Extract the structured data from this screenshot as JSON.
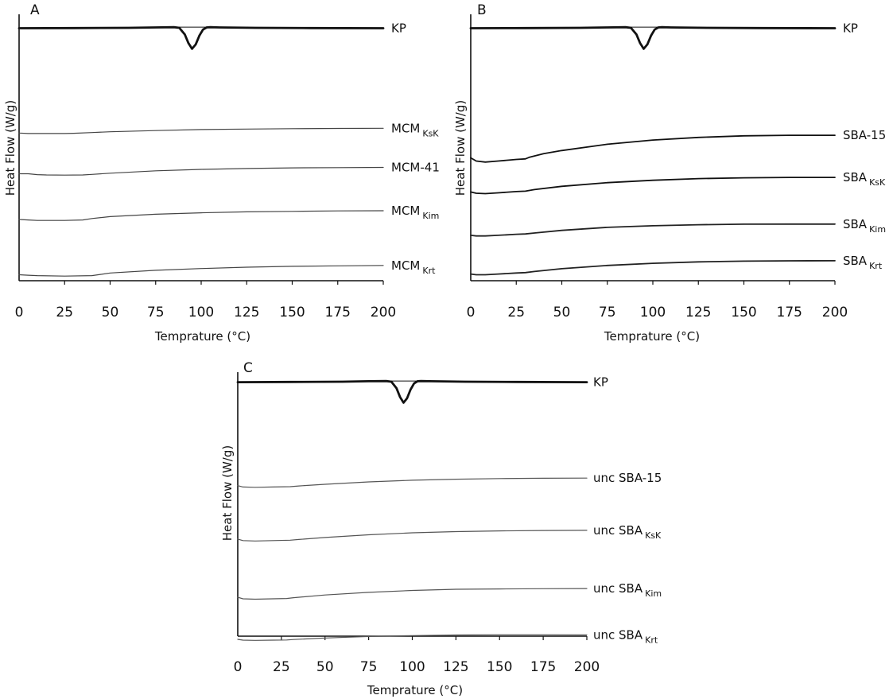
{
  "chart_data": [
    {
      "type": "line",
      "panel": "A",
      "xlabel": "Temprature (°C)",
      "ylabel": "Heat Flow (W/g)",
      "xlim": [
        0,
        200
      ],
      "xticks": [
        "0",
        "25",
        "50",
        "75",
        "100",
        "125",
        "150",
        "175",
        "200"
      ],
      "series": [
        {
          "name": "KP",
          "name_sub": "",
          "kind": "peak",
          "color": "#111111",
          "x": [
            0,
            30,
            60,
            75,
            85,
            88,
            91,
            93,
            95,
            97,
            99,
            101,
            103,
            105,
            110,
            130,
            160,
            200
          ],
          "y": [
            0.99,
            0.995,
            1.0,
            1.01,
            1.015,
            1.0,
            0.85,
            0.65,
            0.52,
            0.62,
            0.82,
            0.96,
            1.01,
            1.015,
            1.01,
            1.0,
            0.995,
            0.99
          ]
        },
        {
          "name": "MCM-41",
          "name_sub": "",
          "kind": "baseline",
          "color": "#444444",
          "x": [
            0,
            5,
            10,
            15,
            25,
            35,
            40,
            50,
            75,
            100,
            125,
            150,
            175,
            200
          ],
          "y": [
            0.52,
            0.52,
            0.505,
            0.5,
            0.497,
            0.5,
            0.51,
            0.53,
            0.57,
            0.595,
            0.61,
            0.62,
            0.625,
            0.628
          ]
        },
        {
          "name": "MCM",
          "name_sub": "KsK",
          "kind": "baseline",
          "color": "#444444",
          "x": [
            0,
            5,
            10,
            25,
            30,
            40,
            50,
            75,
            100,
            125,
            150,
            175,
            200
          ],
          "y": [
            0.36,
            0.35,
            0.35,
            0.35,
            0.355,
            0.37,
            0.385,
            0.41,
            0.43,
            0.44,
            0.447,
            0.452,
            0.455
          ]
        },
        {
          "name": "MCM",
          "name_sub": "Kim",
          "kind": "baseline",
          "color": "#444444",
          "x": [
            0,
            5,
            10,
            25,
            35,
            40,
            50,
            75,
            100,
            125,
            150,
            175,
            200
          ],
          "y": [
            0.2,
            0.195,
            0.19,
            0.19,
            0.195,
            0.21,
            0.23,
            0.255,
            0.27,
            0.28,
            0.285,
            0.29,
            0.292
          ]
        },
        {
          "name": "MCM",
          "name_sub": "Krt",
          "kind": "baseline",
          "color": "#444444",
          "x": [
            0,
            5,
            10,
            25,
            40,
            45,
            50,
            75,
            100,
            125,
            150,
            175,
            200
          ],
          "y": [
            0.04,
            0.035,
            0.03,
            0.025,
            0.03,
            0.045,
            0.06,
            0.09,
            0.11,
            0.125,
            0.135,
            0.14,
            0.145
          ]
        }
      ]
    },
    {
      "type": "line",
      "panel": "B",
      "xlabel": "Temprature (°C)",
      "ylabel": "Heat Flow (W/g)",
      "xlim": [
        0,
        200
      ],
      "xticks": [
        "0",
        "25",
        "50",
        "75",
        "100",
        "125",
        "150",
        "175",
        "200"
      ],
      "series": [
        {
          "name": "KP",
          "name_sub": "",
          "kind": "peak",
          "color": "#111111",
          "x": [
            0,
            30,
            60,
            75,
            85,
            88,
            91,
            93,
            95,
            97,
            99,
            101,
            103,
            105,
            110,
            130,
            160,
            200
          ],
          "y": [
            0.99,
            0.995,
            1.0,
            1.01,
            1.015,
            1.0,
            0.85,
            0.65,
            0.52,
            0.62,
            0.82,
            0.96,
            1.01,
            1.015,
            1.01,
            1.0,
            0.995,
            0.99
          ]
        },
        {
          "name": "SBA-15",
          "name_sub": "",
          "kind": "baseline",
          "color": "#111111",
          "x": [
            0,
            3,
            8,
            15,
            25,
            30,
            32,
            40,
            50,
            75,
            100,
            125,
            150,
            175,
            200
          ],
          "y": [
            0.39,
            0.36,
            0.35,
            0.36,
            0.375,
            0.38,
            0.395,
            0.43,
            0.46,
            0.52,
            0.56,
            0.585,
            0.6,
            0.605,
            0.605
          ]
        },
        {
          "name": "SBA",
          "name_sub": "KsK",
          "kind": "baseline",
          "color": "#111111",
          "x": [
            0,
            3,
            8,
            15,
            25,
            30,
            35,
            50,
            75,
            100,
            125,
            150,
            175,
            200
          ],
          "y": [
            0.28,
            0.265,
            0.26,
            0.27,
            0.285,
            0.29,
            0.31,
            0.35,
            0.395,
            0.425,
            0.445,
            0.455,
            0.46,
            0.46
          ]
        },
        {
          "name": "SBA",
          "name_sub": "Kim",
          "kind": "baseline",
          "color": "#222222",
          "x": [
            0,
            3,
            8,
            15,
            25,
            30,
            35,
            50,
            75,
            100,
            125,
            150,
            175,
            200
          ],
          "y": [
            0.17,
            0.16,
            0.16,
            0.17,
            0.185,
            0.19,
            0.205,
            0.245,
            0.29,
            0.315,
            0.33,
            0.338,
            0.34,
            0.34
          ]
        },
        {
          "name": "SBA",
          "name_sub": "Krt",
          "kind": "baseline",
          "color": "#222222",
          "x": [
            0,
            3,
            8,
            15,
            25,
            30,
            35,
            50,
            75,
            100,
            125,
            150,
            175,
            200
          ],
          "y": [
            0.06,
            0.05,
            0.05,
            0.06,
            0.075,
            0.08,
            0.095,
            0.135,
            0.18,
            0.21,
            0.23,
            0.24,
            0.244,
            0.245
          ]
        }
      ]
    },
    {
      "type": "line",
      "panel": "C",
      "xlabel": "Temprature (°C)",
      "ylabel": "Heat Flow (W/g)",
      "xlim": [
        0,
        200
      ],
      "xticks": [
        "0",
        "25",
        "50",
        "75",
        "100",
        "125",
        "150",
        "175",
        "200"
      ],
      "series": [
        {
          "name": "KP",
          "name_sub": "",
          "kind": "peak",
          "color": "#111111",
          "x": [
            0,
            30,
            60,
            75,
            85,
            88,
            91,
            93,
            95,
            97,
            99,
            101,
            103,
            105,
            110,
            130,
            160,
            200
          ],
          "y": [
            0.99,
            0.995,
            1.0,
            1.01,
            1.015,
            1.0,
            0.85,
            0.65,
            0.52,
            0.62,
            0.82,
            0.96,
            1.01,
            1.015,
            1.01,
            1.0,
            0.995,
            0.99
          ]
        },
        {
          "name": "unc SBA-15",
          "name_sub": "",
          "kind": "baseline",
          "color": "#555555",
          "x": [
            0,
            3,
            10,
            20,
            30,
            35,
            50,
            75,
            100,
            125,
            150,
            175,
            200
          ],
          "y": [
            0.58,
            0.56,
            0.555,
            0.56,
            0.565,
            0.575,
            0.6,
            0.635,
            0.66,
            0.675,
            0.685,
            0.69,
            0.692
          ]
        },
        {
          "name": "unc SBA",
          "name_sub": "KsK",
          "kind": "baseline",
          "color": "#555555",
          "x": [
            0,
            3,
            10,
            20,
            30,
            35,
            50,
            75,
            100,
            125,
            150,
            175,
            200
          ],
          "y": [
            0.43,
            0.41,
            0.405,
            0.41,
            0.415,
            0.425,
            0.45,
            0.485,
            0.51,
            0.525,
            0.535,
            0.54,
            0.542
          ]
        },
        {
          "name": "unc SBA",
          "name_sub": "Kim",
          "kind": "baseline",
          "color": "#555555",
          "x": [
            0,
            3,
            10,
            20,
            28,
            32,
            50,
            75,
            100,
            125,
            150,
            175,
            200
          ],
          "y": [
            0.28,
            0.26,
            0.255,
            0.26,
            0.265,
            0.275,
            0.31,
            0.345,
            0.37,
            0.385,
            0.39,
            0.393,
            0.395
          ]
        },
        {
          "name": "unc SBA",
          "name_sub": "Krt",
          "kind": "baseline",
          "color": "#555555",
          "x": [
            0,
            3,
            10,
            20,
            28,
            32,
            50,
            75,
            100,
            125,
            150,
            175,
            200
          ],
          "y": [
            0.11,
            0.09,
            0.085,
            0.09,
            0.095,
            0.105,
            0.14,
            0.175,
            0.195,
            0.21,
            0.215,
            0.215,
            0.212
          ]
        }
      ]
    }
  ]
}
